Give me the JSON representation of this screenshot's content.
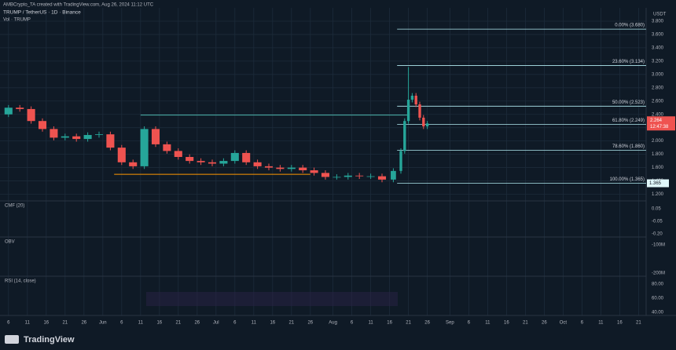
{
  "header": {
    "credit": "AMBCrypto_TA created with TradingView.com, Aug 26, 2024 11:12 UTC",
    "symbol": "TRUMP / TetherUS · 1D · Binance",
    "volume": "Vol · TRUMP",
    "currency": "USDT",
    "brand": "TradingView"
  },
  "chart_data": {
    "type": "candlestick",
    "x": [
      6,
      9,
      12,
      15,
      18,
      21,
      24,
      27,
      30,
      33,
      36,
      39,
      42,
      45,
      48,
      51,
      54,
      57,
      60,
      63,
      66,
      69,
      72,
      75,
      78,
      81,
      84,
      87,
      90,
      93,
      96,
      99,
      102,
      105,
      108,
      110,
      111,
      112,
      113,
      114,
      115,
      116,
      117
    ],
    "open": [
      2.4,
      2.5,
      2.48,
      2.3,
      2.18,
      2.05,
      2.07,
      2.03,
      2.09,
      2.1,
      1.9,
      1.68,
      1.62,
      2.18,
      1.95,
      1.85,
      1.76,
      1.7,
      1.68,
      1.66,
      1.7,
      1.82,
      1.68,
      1.62,
      1.6,
      1.58,
      1.6,
      1.56,
      1.52,
      1.46,
      1.46,
      1.48,
      1.47,
      1.47,
      1.42,
      1.55,
      1.85,
      2.3,
      2.62,
      2.68,
      2.55,
      2.35,
      2.22
    ],
    "high": [
      2.54,
      2.54,
      2.52,
      2.34,
      2.22,
      2.11,
      2.11,
      2.13,
      2.14,
      2.14,
      1.94,
      1.72,
      2.22,
      2.22,
      1.99,
      1.89,
      1.8,
      1.74,
      1.72,
      1.74,
      1.86,
      1.86,
      1.72,
      1.66,
      1.64,
      1.64,
      1.64,
      1.6,
      1.56,
      1.5,
      1.52,
      1.52,
      1.51,
      1.51,
      1.59,
      1.89,
      2.34,
      3.11,
      2.72,
      2.72,
      2.59,
      2.39,
      2.3
    ],
    "low": [
      2.36,
      2.44,
      2.26,
      2.14,
      2.01,
      2.01,
      1.99,
      1.99,
      2.05,
      1.86,
      1.64,
      1.58,
      1.58,
      1.91,
      1.81,
      1.72,
      1.66,
      1.64,
      1.62,
      1.62,
      1.66,
      1.64,
      1.58,
      1.56,
      1.54,
      1.54,
      1.52,
      1.48,
      1.42,
      1.42,
      1.42,
      1.43,
      1.43,
      1.38,
      1.38,
      1.51,
      1.81,
      2.26,
      2.58,
      2.51,
      2.31,
      2.18,
      2.18
    ],
    "close": [
      2.5,
      2.48,
      2.3,
      2.18,
      2.05,
      2.07,
      2.03,
      2.09,
      2.1,
      1.9,
      1.68,
      1.62,
      2.18,
      1.95,
      1.85,
      1.76,
      1.7,
      1.68,
      1.66,
      1.7,
      1.82,
      1.68,
      1.62,
      1.6,
      1.58,
      1.6,
      1.56,
      1.52,
      1.46,
      1.46,
      1.48,
      1.47,
      1.47,
      1.42,
      1.55,
      1.85,
      2.3,
      2.62,
      2.68,
      2.55,
      2.35,
      2.22,
      2.264
    ],
    "up_color": "#26a69a",
    "down_color": "#ef5350",
    "xlim": [
      3.75,
      175
    ],
    "ylim": [
      1.1,
      4.0
    ],
    "xticks": [
      6,
      11,
      16,
      21,
      26,
      {
        "value": 31,
        "label": "Jun"
      },
      {
        "value": 36,
        "label": "6"
      },
      {
        "value": 41,
        "label": "11"
      },
      {
        "value": 46,
        "label": "16"
      },
      {
        "value": 51,
        "label": "21"
      },
      {
        "value": 56,
        "label": "26"
      },
      {
        "value": 61,
        "label": "Jul"
      },
      {
        "value": 66,
        "label": "6"
      },
      {
        "value": 71,
        "label": "11"
      },
      {
        "value": 76,
        "label": "16"
      },
      {
        "value": 81,
        "label": "21"
      },
      {
        "value": 86,
        "label": "26"
      },
      {
        "value": 92,
        "label": "Aug"
      },
      {
        "value": 97,
        "label": "6"
      },
      {
        "value": 102,
        "label": "11"
      },
      {
        "value": 107,
        "label": "16"
      },
      {
        "value": 112,
        "label": "21"
      },
      {
        "value": 117,
        "label": "26"
      },
      {
        "value": 123,
        "label": "Sep"
      },
      {
        "value": 128,
        "label": "6"
      },
      {
        "value": 133,
        "label": "11"
      },
      {
        "value": 138,
        "label": "16"
      },
      {
        "value": 143,
        "label": "21"
      },
      {
        "value": 148,
        "label": "26"
      },
      {
        "value": 153,
        "label": "Oct"
      },
      {
        "value": 158,
        "label": "6"
      },
      {
        "value": 163,
        "label": "11"
      },
      {
        "value": 168,
        "label": "16"
      },
      {
        "value": 173,
        "label": "21"
      }
    ],
    "yticks": [
      {
        "value": 1.2,
        "label": "1.200"
      },
      {
        "value": 1.4,
        "label": "1.400"
      },
      {
        "value": 1.6,
        "label": "1.600"
      },
      {
        "value": 1.8,
        "label": "1.800"
      },
      {
        "value": 2.0,
        "label": "2.000"
      },
      {
        "value": 2.2,
        "label": "2.200"
      },
      {
        "value": 2.4,
        "label": "2.400"
      },
      {
        "value": 2.6,
        "label": "2.600"
      },
      {
        "value": 2.8,
        "label": "2.800"
      },
      {
        "value": 3.0,
        "label": "3.000"
      },
      {
        "value": 3.2,
        "label": "3.200"
      },
      {
        "value": 3.4,
        "label": "3.400"
      },
      {
        "value": 3.6,
        "label": "3.600"
      },
      {
        "value": 3.8,
        "label": "3.800"
      }
    ],
    "fib_levels": [
      {
        "value": 3.68,
        "label": "0.00% (3.680)"
      },
      {
        "value": 3.134,
        "label": "23.60% (3.134)"
      },
      {
        "value": 2.523,
        "label": "50.00% (2.523)"
      },
      {
        "value": 2.249,
        "label": "61.80% (2.249)"
      },
      {
        "value": 1.86,
        "label": "78.60% (1.860)"
      },
      {
        "value": 1.365,
        "label": "100.00% (1.365)"
      }
    ],
    "fib_color": "#b2ebf2",
    "fib_start": 109,
    "horizontal_lines": [
      {
        "value": 2.39,
        "start": 41,
        "end": 112,
        "color": "#4db6ac"
      },
      {
        "value": 1.5,
        "start": 34,
        "end": 86,
        "color": "#ff9800"
      }
    ],
    "last_price": {
      "value": 2.264,
      "label": "2.264",
      "countdown": "12:47:38"
    },
    "level_marker": {
      "value": 1.365,
      "label": "1.365"
    }
  },
  "indicators": [
    {
      "name": "CMF (20)",
      "ticks": [
        "0.05",
        "-0.05",
        "-0.20"
      ]
    },
    {
      "name": "OBV",
      "ticks": [
        "-100M",
        "-200M"
      ]
    },
    {
      "name": "RSI (14, close)",
      "ticks": [
        "80.00",
        "60.00",
        "40.00"
      ]
    }
  ]
}
